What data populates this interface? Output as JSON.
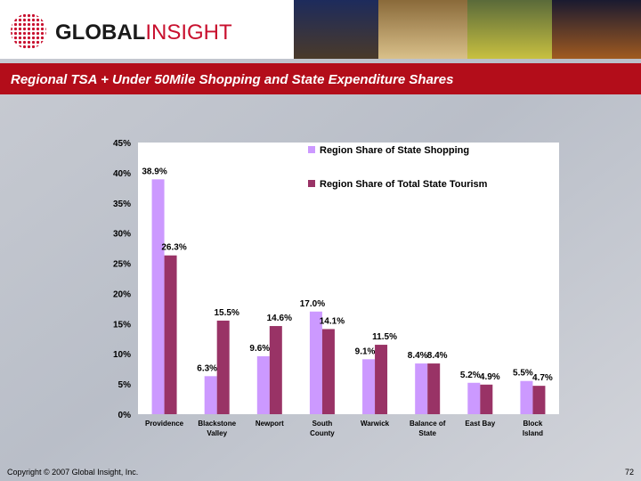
{
  "header": {
    "logo": [
      "GLOBAL",
      "INSIGHT"
    ]
  },
  "chart_data": {
    "type": "bar",
    "title": "Regional TSA + Under 50Mile Shopping and State Expenditure Shares",
    "categories": [
      [
        "Providence"
      ],
      [
        "Blackstone",
        "Valley"
      ],
      [
        "Newport"
      ],
      [
        "South",
        "County"
      ],
      [
        "Warwick"
      ],
      [
        "Balance of",
        "State"
      ],
      [
        "East Bay"
      ],
      [
        "Block",
        "Island"
      ]
    ],
    "series": [
      {
        "name": "Region Share of State Shopping",
        "color": "#cc99ff",
        "values": [
          38.9,
          6.3,
          9.6,
          17.0,
          9.1,
          8.4,
          5.2,
          5.5
        ],
        "value_labels": [
          "38.9%",
          "6.3%",
          "9.6%",
          "17.0%",
          "9.1%",
          "8.4%",
          "5.2%",
          "5.5%"
        ]
      },
      {
        "name": "Region Share of Total State Tourism",
        "color": "#993366",
        "values": [
          26.3,
          15.5,
          14.6,
          14.1,
          11.5,
          8.4,
          4.9,
          4.7
        ],
        "value_labels": [
          "26.3%",
          "15.5%",
          "14.6%",
          "14.1%",
          "11.5%",
          "8.4%",
          "4.9%",
          "4.7%"
        ]
      }
    ],
    "ylim": [
      0,
      45
    ],
    "yticks": [
      {
        "value": 0,
        "label": "0%"
      },
      {
        "value": 5,
        "label": "5%"
      },
      {
        "value": 10,
        "label": "10%"
      },
      {
        "value": 15,
        "label": "15%"
      },
      {
        "value": 20,
        "label": "20%"
      },
      {
        "value": 25,
        "label": "25%"
      },
      {
        "value": 30,
        "label": "30%"
      },
      {
        "value": 35,
        "label": "35%"
      },
      {
        "value": 40,
        "label": "40%"
      },
      {
        "value": 45,
        "label": "45%"
      }
    ],
    "grid": false
  },
  "footer": {
    "copyright": "Copyright © 2007 Global Insight, Inc.",
    "page": "72"
  }
}
